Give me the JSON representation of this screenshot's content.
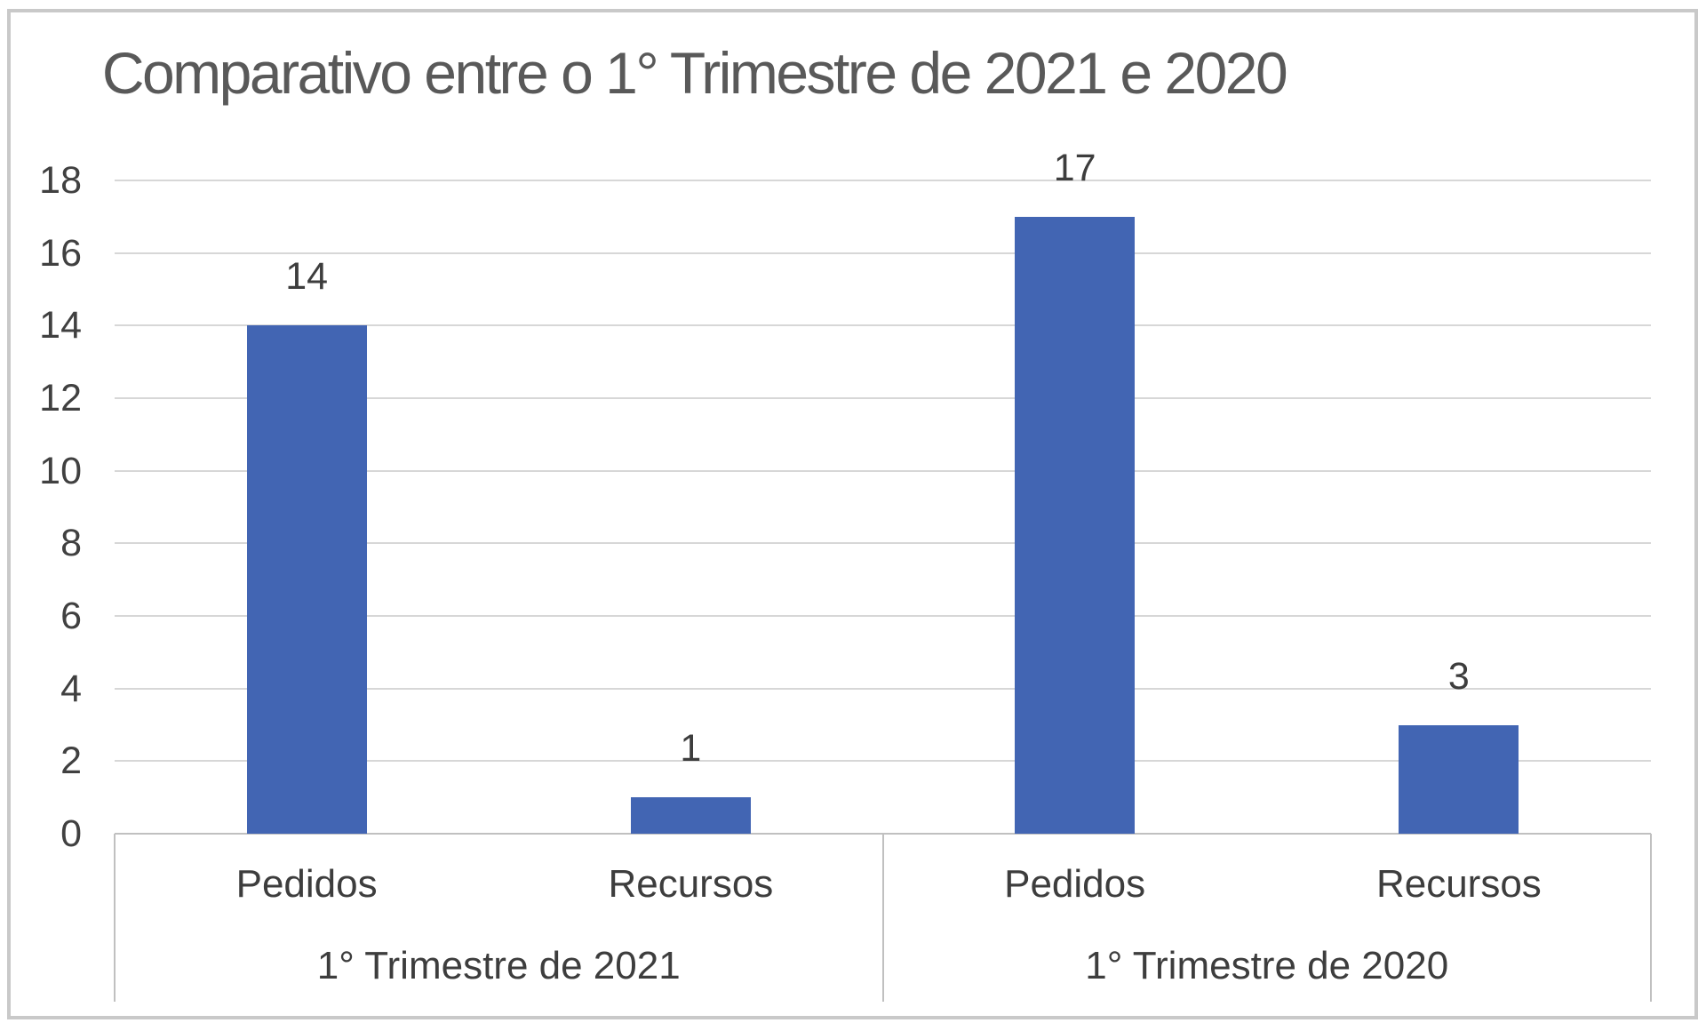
{
  "chart_data": {
    "type": "bar",
    "title": "Comparativo entre o 1° Trimestre de 2021 e 2020",
    "xlabel": "",
    "ylabel": "",
    "ylim": [
      0,
      18
    ],
    "yticks": [
      0,
      2,
      4,
      6,
      8,
      10,
      12,
      14,
      16,
      18
    ],
    "grid": "horizontal",
    "legend": "none",
    "bar_color": "#4265B3",
    "data_labels_visible": true,
    "groups": [
      {
        "label": "1° Trimestre de 2021",
        "categories": [
          "Pedidos",
          "Recursos"
        ],
        "values": [
          14,
          1
        ]
      },
      {
        "label": "1° Trimestre de 2020",
        "categories": [
          "Pedidos",
          "Recursos"
        ],
        "values": [
          17,
          3
        ]
      }
    ]
  },
  "colors": {
    "bar": "#4265B3",
    "title_text": "#595959",
    "axis_text": "#404040",
    "data_label_text": "#3D3D3D",
    "gridline": "#D7D7D7",
    "axis_line": "#C0C0C0",
    "frame_border": "#C9C9C9",
    "background": "#FFFFFF"
  }
}
